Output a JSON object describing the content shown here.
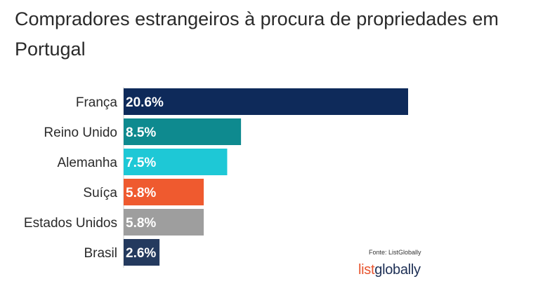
{
  "chart_data": {
    "type": "bar",
    "orientation": "horizontal",
    "title": "Compradores estrangeiros à procura de propriedades em Portugal",
    "categories": [
      "França",
      "Reino Unido",
      "Alemanha",
      "Suíça",
      "Estados Unidos",
      "Brasil"
    ],
    "values": [
      20.6,
      8.5,
      7.5,
      5.8,
      5.8,
      2.6
    ],
    "value_labels": [
      "20.6%",
      "8.5%",
      "7.5%",
      "5.8%",
      "5.8%",
      "2.6%"
    ],
    "colors": [
      "#0e2a5a",
      "#0e8a8f",
      "#1ec8d6",
      "#ef5a2f",
      "#9e9e9e",
      "#243a5e"
    ],
    "unit": "%",
    "xlabel": "",
    "ylabel": "",
    "xlim": [
      0,
      20.6
    ],
    "grid": false,
    "legend": "none"
  },
  "source": "Fonte: ListGlobally",
  "logo": {
    "part1": "list",
    "part2": "globally"
  }
}
